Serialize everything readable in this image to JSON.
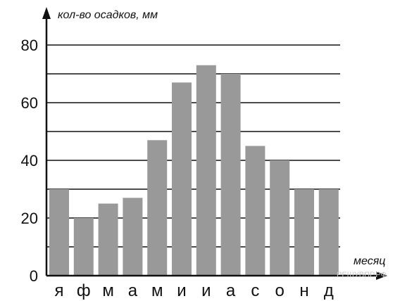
{
  "chart_data": {
    "type": "bar",
    "ylabel": "кол-во осадков, мм",
    "xlabel": "месяц",
    "categories": [
      "я",
      "ф",
      "м",
      "а",
      "м",
      "и",
      "и",
      "а",
      "с",
      "о",
      "н",
      "д"
    ],
    "values": [
      30,
      20,
      25,
      27,
      47,
      67,
      73,
      70,
      45,
      40,
      30,
      30
    ],
    "ylim": [
      0,
      80
    ],
    "yticks": [
      0,
      20,
      40,
      60,
      80
    ],
    "gridlines": [
      10,
      20,
      30,
      40,
      50,
      60,
      70,
      80
    ],
    "grid": true,
    "bar_color": "#999999"
  },
  "watermark": "РЕШУВПР.РФ"
}
